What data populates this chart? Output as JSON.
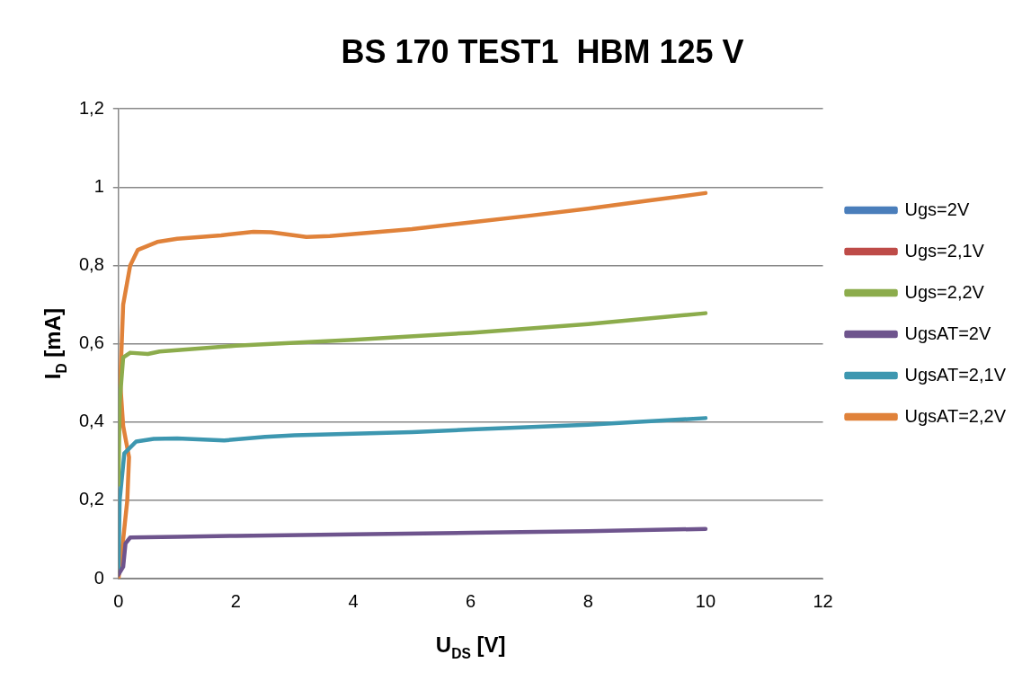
{
  "chart_data": {
    "type": "line",
    "title": "BS 170 TEST1  HBM 125 V",
    "xlabel": "U$_{DS}$ [V]",
    "ylabel": "I$_{D}$ [mA]",
    "xlim": [
      0,
      12
    ],
    "xticks": [
      0,
      2,
      4,
      6,
      8,
      10,
      12
    ],
    "ylim": [
      0,
      1.2
    ],
    "yticks": [
      0,
      {
        "value": 0.2,
        "label": "0,2"
      },
      {
        "value": 0.4,
        "label": "0,4"
      },
      {
        "value": 0.6,
        "label": "0,6"
      },
      {
        "value": 0.8,
        "label": "0,8"
      },
      1,
      {
        "value": 1.2,
        "label": "1,2"
      }
    ],
    "grid": "y",
    "legend": "right",
    "marker": "none",
    "line_style": "solid",
    "series": [
      {
        "name": "Ugs=2V",
        "color": "#4a7ebb"
      },
      {
        "name": "Ugs=2,1V",
        "color": "#be4b48"
      },
      {
        "name": "Ugs=2,2V",
        "color": "#8cac4c",
        "x": [
          0,
          0.02,
          0.08,
          0.2,
          0.5,
          0.7,
          2,
          4,
          6,
          8,
          10
        ],
        "values": [
          0.24,
          0.45,
          0.565,
          0.577,
          0.574,
          0.58,
          0.595,
          0.61,
          0.628,
          0.65,
          0.678
        ]
      },
      {
        "name": "UgsAT=2V",
        "color": "#6e548d",
        "x": [
          0,
          0.08,
          0.12,
          0.2,
          1,
          2,
          4,
          6,
          8,
          10
        ],
        "values": [
          0.01,
          0.03,
          0.09,
          0.105,
          0.107,
          0.109,
          0.113,
          0.117,
          0.121,
          0.127
        ]
      },
      {
        "name": "UgsAT=2,1V",
        "color": "#3d97b0",
        "x": [
          0,
          0.02,
          0.1,
          0.3,
          0.6,
          1,
          1.8,
          2.5,
          3,
          4,
          5,
          6,
          8,
          10
        ],
        "values": [
          0.02,
          0.2,
          0.32,
          0.35,
          0.357,
          0.358,
          0.353,
          0.362,
          0.366,
          0.37,
          0.374,
          0.381,
          0.393,
          0.41
        ]
      },
      {
        "name": "UgsAT=2,2V",
        "color": "#e0823a",
        "x": [
          0,
          0.08,
          0.15,
          0.18,
          0.08,
          0.03,
          0.08,
          0.2,
          0.33,
          0.66,
          1,
          1.75,
          2.3,
          2.6,
          3.2,
          3.6,
          4,
          5,
          6,
          7,
          8,
          9,
          10
        ],
        "values": [
          0,
          0.1,
          0.2,
          0.31,
          0.39,
          0.5,
          0.7,
          0.8,
          0.84,
          0.86,
          0.868,
          0.877,
          0.886,
          0.885,
          0.873,
          0.875,
          0.88,
          0.893,
          0.91,
          0.927,
          0.945,
          0.965,
          0.985
        ]
      }
    ]
  }
}
